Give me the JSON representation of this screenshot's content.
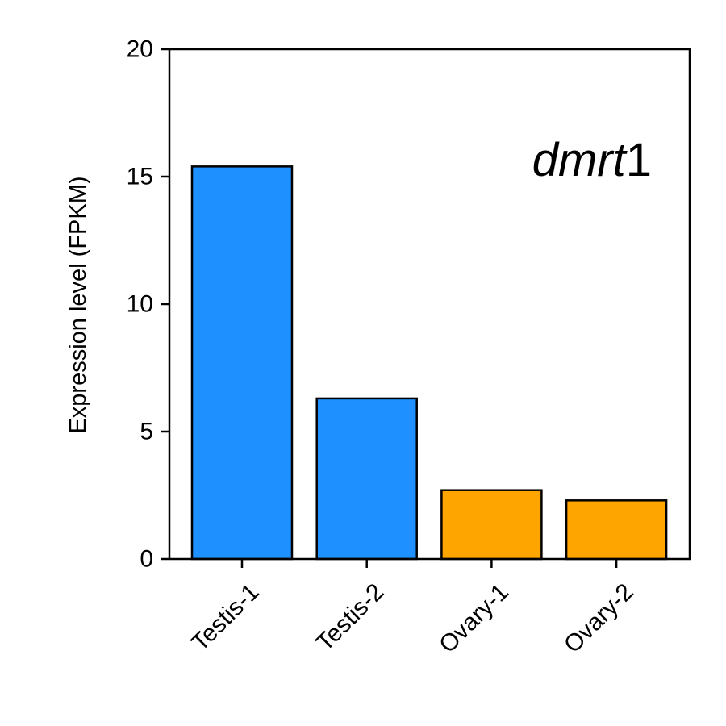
{
  "chart_data": {
    "type": "bar",
    "categories": [
      "Testis-1",
      "Testis-2",
      "Ovary-1",
      "Ovary-2"
    ],
    "values": [
      15.4,
      6.3,
      2.7,
      2.3
    ],
    "bar_colors": [
      "#1E90FF",
      "#1E90FF",
      "#FFA500",
      "#FFA500"
    ],
    "edge_color": "#000000",
    "xlabel": "",
    "ylabel": "Expression level (FPKM)",
    "ylim": [
      0,
      20
    ],
    "yticks": [
      0,
      5,
      10,
      15,
      20
    ],
    "annotation": {
      "gene_italic": "dmrt",
      "gene_suffix": "1",
      "placement": "top-right"
    },
    "grid": false,
    "legend": "none"
  }
}
